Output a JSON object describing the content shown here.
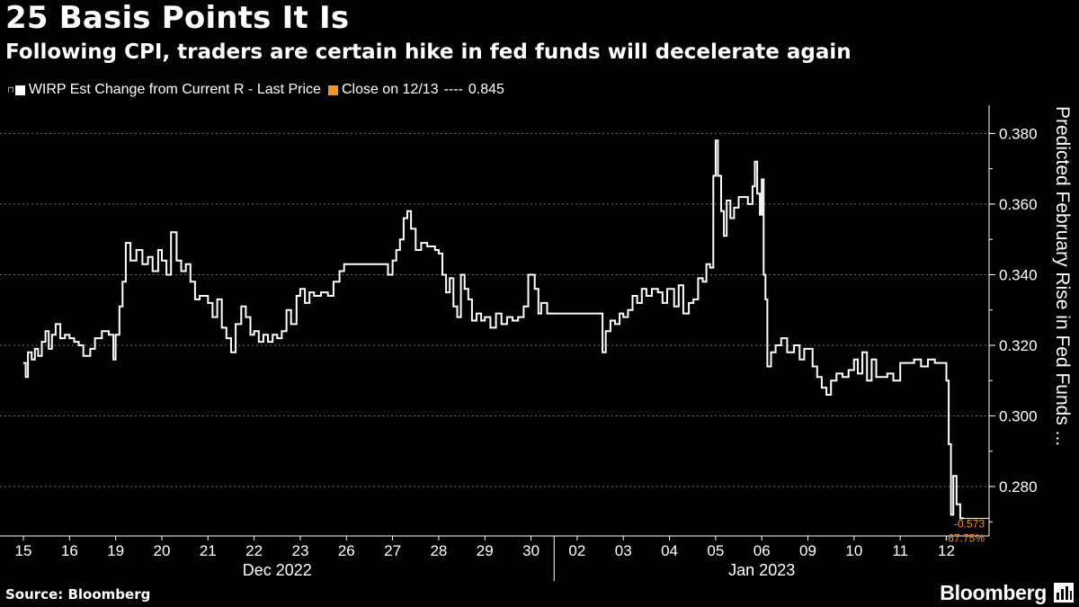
{
  "header": {
    "title": "25 Basis Points It Is",
    "subtitle": "Following CPI, traders are certain hike in fed funds will decelerate again"
  },
  "legend": {
    "series_label": "WIRP Est Change from Current R - Last Price",
    "close_label": "Close on 12/13",
    "close_value": "0.845"
  },
  "footer": {
    "source": "Source: Bloomberg",
    "brand": "Bloomberg"
  },
  "colors": {
    "background": "#000000",
    "line": "#ffffff",
    "accent": "#f7941d",
    "grid": "#6e6e6e"
  },
  "chart_data": {
    "type": "line",
    "ylabel": "Predicted February Rise in Fed Funds ...",
    "ylim": [
      0.266,
      0.388
    ],
    "yticks": [
      0.28,
      0.3,
      0.32,
      0.34,
      0.36,
      0.38
    ],
    "ytick_labels": [
      "0.280",
      "0.300",
      "0.320",
      "0.340",
      "0.360",
      "0.380"
    ],
    "grid": true,
    "x_day_labels": [
      "15",
      "16",
      "19",
      "20",
      "21",
      "22",
      "23",
      "26",
      "27",
      "28",
      "29",
      "30",
      "02",
      "03",
      "04",
      "05",
      "06",
      "09",
      "10",
      "11",
      "12"
    ],
    "month_labels": [
      {
        "label": "Dec 2022",
        "first_day": 0,
        "last_day": 11
      },
      {
        "label": "Jan 2023",
        "first_day": 12,
        "last_day": 20
      }
    ],
    "annotations": {
      "last_change": "-0.573",
      "last_pct": "-67.75%"
    },
    "series": [
      {
        "name": "WIRP Est Change from Current R - Last Price",
        "points": [
          [
            0.0,
            0.315
          ],
          [
            0.05,
            0.311
          ],
          [
            0.1,
            0.318
          ],
          [
            0.18,
            0.316
          ],
          [
            0.25,
            0.319
          ],
          [
            0.32,
            0.317
          ],
          [
            0.4,
            0.321
          ],
          [
            0.48,
            0.324
          ],
          [
            0.55,
            0.319
          ],
          [
            0.62,
            0.323
          ],
          [
            0.7,
            0.326
          ],
          [
            0.8,
            0.322
          ],
          [
            0.9,
            0.323
          ],
          [
            1.0,
            0.322
          ],
          [
            1.1,
            0.321
          ],
          [
            1.2,
            0.32
          ],
          [
            1.3,
            0.317
          ],
          [
            1.45,
            0.319
          ],
          [
            1.55,
            0.322
          ],
          [
            1.7,
            0.324
          ],
          [
            1.85,
            0.323
          ],
          [
            1.95,
            0.316
          ],
          [
            2.0,
            0.323
          ],
          [
            2.08,
            0.331
          ],
          [
            2.15,
            0.338
          ],
          [
            2.22,
            0.349
          ],
          [
            2.32,
            0.344
          ],
          [
            2.45,
            0.347
          ],
          [
            2.58,
            0.343
          ],
          [
            2.7,
            0.345
          ],
          [
            2.8,
            0.341
          ],
          [
            2.92,
            0.347
          ],
          [
            3.0,
            0.344
          ],
          [
            3.1,
            0.34
          ],
          [
            3.2,
            0.352
          ],
          [
            3.32,
            0.344
          ],
          [
            3.42,
            0.341
          ],
          [
            3.52,
            0.343
          ],
          [
            3.62,
            0.338
          ],
          [
            3.72,
            0.333
          ],
          [
            3.82,
            0.334
          ],
          [
            4.0,
            0.332
          ],
          [
            4.1,
            0.328
          ],
          [
            4.2,
            0.333
          ],
          [
            4.3,
            0.325
          ],
          [
            4.4,
            0.322
          ],
          [
            4.5,
            0.318
          ],
          [
            4.6,
            0.326
          ],
          [
            4.72,
            0.331
          ],
          [
            4.82,
            0.328
          ],
          [
            4.92,
            0.323
          ],
          [
            5.0,
            0.324
          ],
          [
            5.1,
            0.321
          ],
          [
            5.2,
            0.323
          ],
          [
            5.3,
            0.321
          ],
          [
            5.4,
            0.323
          ],
          [
            5.5,
            0.322
          ],
          [
            5.6,
            0.324
          ],
          [
            5.7,
            0.33
          ],
          [
            5.8,
            0.326
          ],
          [
            5.92,
            0.334
          ],
          [
            6.0,
            0.336
          ],
          [
            6.1,
            0.332
          ],
          [
            6.2,
            0.335
          ],
          [
            6.3,
            0.334
          ],
          [
            6.45,
            0.335
          ],
          [
            6.6,
            0.334
          ],
          [
            6.72,
            0.338
          ],
          [
            6.85,
            0.341
          ],
          [
            6.95,
            0.343
          ],
          [
            7.0,
            0.343
          ],
          [
            7.4,
            0.343
          ],
          [
            7.8,
            0.343
          ],
          [
            7.9,
            0.34
          ],
          [
            8.0,
            0.344
          ],
          [
            8.08,
            0.347
          ],
          [
            8.16,
            0.35
          ],
          [
            8.24,
            0.356
          ],
          [
            8.32,
            0.358
          ],
          [
            8.4,
            0.353
          ],
          [
            8.5,
            0.347
          ],
          [
            8.62,
            0.349
          ],
          [
            8.75,
            0.348
          ],
          [
            8.92,
            0.347
          ],
          [
            9.0,
            0.346
          ],
          [
            9.08,
            0.34
          ],
          [
            9.16,
            0.335
          ],
          [
            9.24,
            0.339
          ],
          [
            9.32,
            0.331
          ],
          [
            9.4,
            0.328
          ],
          [
            9.48,
            0.34
          ],
          [
            9.56,
            0.336
          ],
          [
            9.64,
            0.333
          ],
          [
            9.72,
            0.327
          ],
          [
            9.82,
            0.329
          ],
          [
            9.92,
            0.327
          ],
          [
            10.0,
            0.328
          ],
          [
            10.12,
            0.325
          ],
          [
            10.24,
            0.329
          ],
          [
            10.36,
            0.326
          ],
          [
            10.48,
            0.328
          ],
          [
            10.6,
            0.327
          ],
          [
            10.72,
            0.328
          ],
          [
            10.84,
            0.331
          ],
          [
            10.94,
            0.34
          ],
          [
            11.0,
            0.34
          ],
          [
            11.08,
            0.336
          ],
          [
            11.16,
            0.329
          ],
          [
            11.22,
            0.332
          ],
          [
            11.35,
            0.329
          ],
          [
            11.5,
            0.329
          ],
          [
            11.65,
            0.329
          ],
          [
            11.8,
            0.329
          ],
          [
            11.95,
            0.329
          ],
          [
            12.0,
            0.329
          ],
          [
            12.25,
            0.329
          ],
          [
            12.48,
            0.329
          ],
          [
            12.55,
            0.318
          ],
          [
            12.62,
            0.324
          ],
          [
            12.72,
            0.327
          ],
          [
            12.82,
            0.326
          ],
          [
            12.92,
            0.329
          ],
          [
            13.0,
            0.328
          ],
          [
            13.1,
            0.33
          ],
          [
            13.2,
            0.334
          ],
          [
            13.3,
            0.332
          ],
          [
            13.4,
            0.336
          ],
          [
            13.5,
            0.334
          ],
          [
            13.62,
            0.336
          ],
          [
            13.75,
            0.335
          ],
          [
            13.85,
            0.332
          ],
          [
            13.95,
            0.336
          ],
          [
            14.0,
            0.336
          ],
          [
            14.1,
            0.331
          ],
          [
            14.2,
            0.337
          ],
          [
            14.3,
            0.329
          ],
          [
            14.42,
            0.332
          ],
          [
            14.52,
            0.333
          ],
          [
            14.62,
            0.339
          ],
          [
            14.72,
            0.338
          ],
          [
            14.8,
            0.343
          ],
          [
            14.88,
            0.342
          ],
          [
            14.95,
            0.368
          ],
          [
            15.0,
            0.378
          ],
          [
            15.05,
            0.368
          ],
          [
            15.12,
            0.358
          ],
          [
            15.18,
            0.351
          ],
          [
            15.24,
            0.361
          ],
          [
            15.32,
            0.356
          ],
          [
            15.4,
            0.359
          ],
          [
            15.5,
            0.362
          ],
          [
            15.6,
            0.362
          ],
          [
            15.7,
            0.36
          ],
          [
            15.8,
            0.365
          ],
          [
            15.85,
            0.372
          ],
          [
            15.9,
            0.363
          ],
          [
            15.96,
            0.357
          ],
          [
            16.0,
            0.367
          ],
          [
            16.04,
            0.34
          ],
          [
            16.08,
            0.333
          ],
          [
            16.12,
            0.314
          ],
          [
            16.2,
            0.318
          ],
          [
            16.3,
            0.32
          ],
          [
            16.42,
            0.322
          ],
          [
            16.55,
            0.318
          ],
          [
            16.7,
            0.32
          ],
          [
            16.82,
            0.316
          ],
          [
            16.92,
            0.319
          ],
          [
            17.0,
            0.319
          ],
          [
            17.1,
            0.314
          ],
          [
            17.2,
            0.311
          ],
          [
            17.3,
            0.308
          ],
          [
            17.4,
            0.306
          ],
          [
            17.5,
            0.31
          ],
          [
            17.62,
            0.312
          ],
          [
            17.75,
            0.311
          ],
          [
            17.88,
            0.313
          ],
          [
            18.0,
            0.316
          ],
          [
            18.08,
            0.312
          ],
          [
            18.18,
            0.318
          ],
          [
            18.28,
            0.31
          ],
          [
            18.38,
            0.316
          ],
          [
            18.48,
            0.311
          ],
          [
            18.6,
            0.311
          ],
          [
            18.72,
            0.312
          ],
          [
            18.85,
            0.31
          ],
          [
            19.0,
            0.315
          ],
          [
            19.15,
            0.315
          ],
          [
            19.3,
            0.316
          ],
          [
            19.45,
            0.314
          ],
          [
            19.6,
            0.316
          ],
          [
            19.75,
            0.315
          ],
          [
            19.9,
            0.315
          ],
          [
            20.0,
            0.31
          ],
          [
            20.05,
            0.292
          ],
          [
            20.1,
            0.272
          ],
          [
            20.15,
            0.283
          ],
          [
            20.22,
            0.275
          ],
          [
            20.3,
            0.271
          ],
          [
            20.38,
            0.271
          ]
        ]
      }
    ]
  }
}
